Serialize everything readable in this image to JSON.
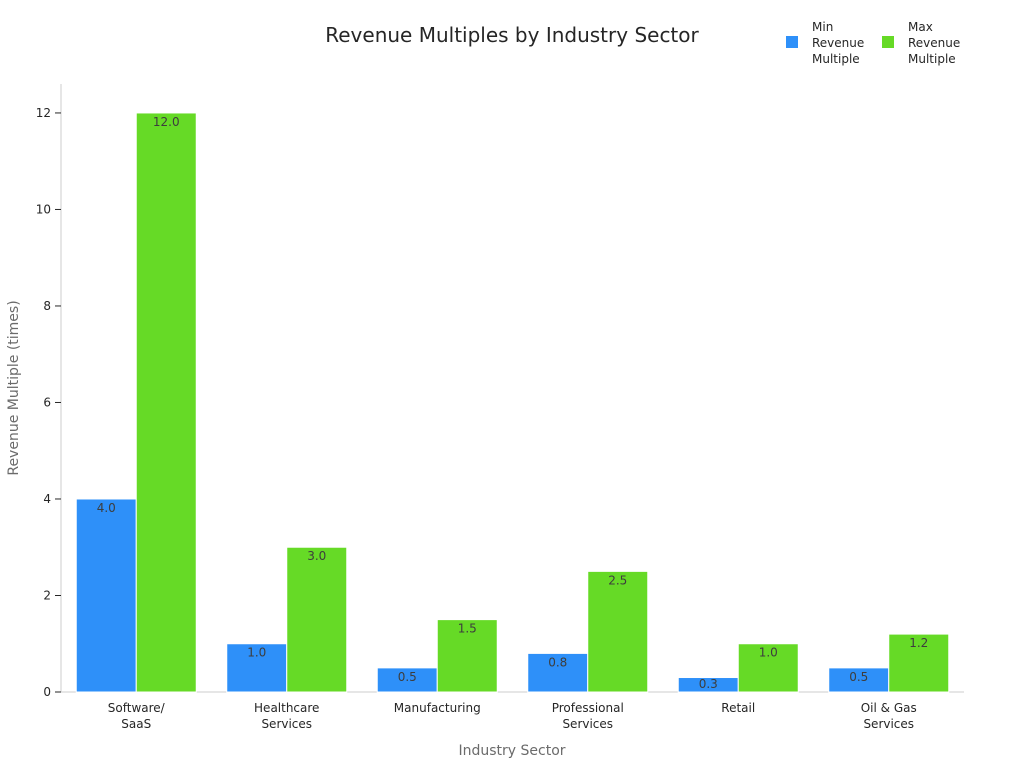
{
  "chart_data": {
    "type": "bar",
    "title": "Revenue Multiples by Industry Sector",
    "xlabel": "Industry Sector",
    "ylabel": "Revenue Multiple (times)",
    "categories": [
      [
        "Software/",
        "SaaS"
      ],
      [
        "Healthcare",
        "Services"
      ],
      [
        "Manufacturing"
      ],
      [
        "Professional",
        "Services"
      ],
      [
        "Retail"
      ],
      [
        "Oil & Gas",
        "Services"
      ]
    ],
    "series": [
      {
        "name": "Min Revenue Multiple",
        "legend_lines": [
          "Min",
          "Revenue",
          "Multiple"
        ],
        "color": "#2e90f9",
        "values": [
          4.0,
          1.0,
          0.5,
          0.8,
          0.3,
          0.5
        ],
        "labels": [
          "4.0",
          "1.0",
          "0.5",
          "0.8",
          "0.3",
          "0.5"
        ]
      },
      {
        "name": "Max Revenue Multiple",
        "legend_lines": [
          "Max",
          "Revenue",
          "Multiple"
        ],
        "color": "#66da26",
        "values": [
          12.0,
          3.0,
          1.5,
          2.5,
          1.0,
          1.2
        ],
        "labels": [
          "12.0",
          "3.0",
          "1.5",
          "2.5",
          "1.0",
          "1.2"
        ]
      }
    ],
    "y_ticks": [
      0,
      2,
      4,
      6,
      8,
      10,
      12
    ],
    "ylim": [
      0,
      12.6
    ],
    "grid": false,
    "legend_position": "top-right"
  }
}
